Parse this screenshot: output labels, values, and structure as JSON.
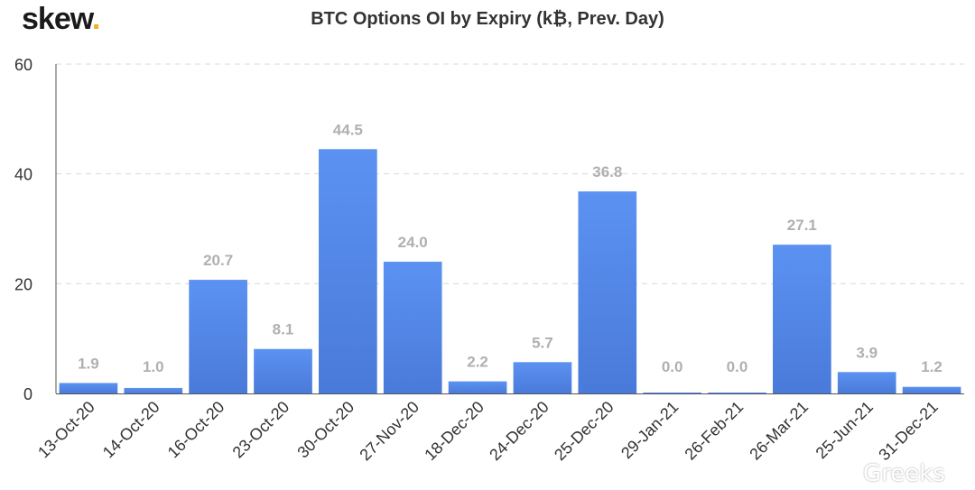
{
  "brand": {
    "name": "skew",
    "dot": "."
  },
  "watermark": "Greeks",
  "colors": {
    "bar": "#5b8def",
    "bar_dark": "#4a78d8",
    "label": "#b0b0b0",
    "axis_text": "#333333",
    "grid": "#d9d9d9"
  },
  "chart_data": {
    "type": "bar",
    "title": "BTC Options OI by Expiry (k₿, Prev. Day)",
    "xlabel": "",
    "ylabel": "",
    "ylim": [
      0,
      60
    ],
    "yticks": [
      0,
      20,
      40,
      60
    ],
    "grid": true,
    "categories": [
      "13-Oct-20",
      "14-Oct-20",
      "16-Oct-20",
      "23-Oct-20",
      "30-Oct-20",
      "27-Nov-20",
      "18-Dec-20",
      "24-Dec-20",
      "25-Dec-20",
      "29-Jan-21",
      "26-Feb-21",
      "26-Mar-21",
      "25-Jun-21",
      "31-Dec-21"
    ],
    "values": [
      1.9,
      1.0,
      20.7,
      8.1,
      44.5,
      24.0,
      2.2,
      5.7,
      36.8,
      0.0,
      0.0,
      27.1,
      3.9,
      1.2
    ],
    "data_labels": [
      "1.9",
      "1.0",
      "20.7",
      "8.1",
      "44.5",
      "24.0",
      "2.2",
      "5.7",
      "36.8",
      "0.0",
      "0.0",
      "27.1",
      "3.9",
      "1.2"
    ]
  }
}
